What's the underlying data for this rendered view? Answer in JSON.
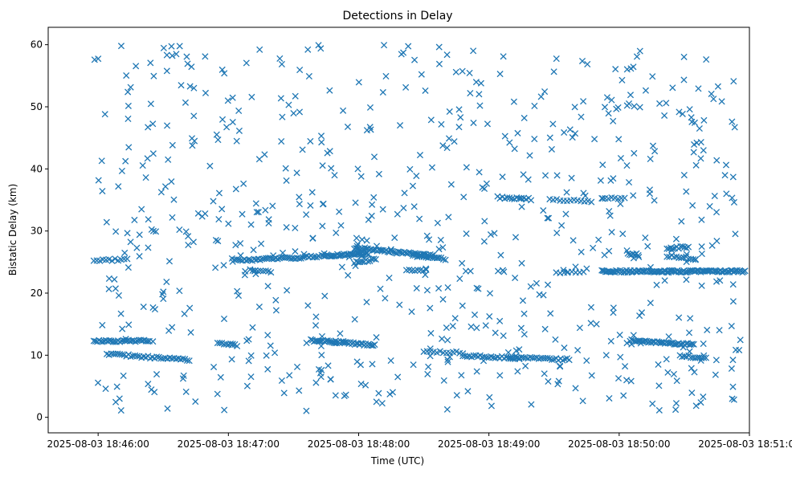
{
  "chart_data": {
    "type": "scatter",
    "title": "Detections in Delay",
    "xlabel": "Time (UTC)",
    "ylabel": "Bistatic Delay (km)",
    "marker": "x",
    "marker_color": "#1f77b4",
    "grid": false,
    "x_is_time": true,
    "xlim_seconds_from_1846": [
      -23,
      300
    ],
    "ylim": [
      -2.5,
      62.8
    ],
    "xticks": [
      {
        "value": 0,
        "label": "2025-08-03 18:46:00"
      },
      {
        "value": 60,
        "label": "2025-08-03 18:47:00"
      },
      {
        "value": 120,
        "label": "2025-08-03 18:48:00"
      },
      {
        "value": 180,
        "label": "2025-08-03 18:49:00"
      },
      {
        "value": 240,
        "label": "2025-08-03 18:50:00"
      },
      {
        "value": 300,
        "label": "2025-08-03 18:51:00"
      }
    ],
    "yticks": [
      0,
      10,
      20,
      30,
      40,
      50,
      60
    ],
    "tracks": [
      {
        "t0": -2,
        "t1": 24,
        "d0": 12.3,
        "d1": 12.3,
        "step": 0.8
      },
      {
        "t0": 4,
        "t1": 42,
        "d0": 10.2,
        "d1": 9.2,
        "step": 1.0
      },
      {
        "t0": -2,
        "t1": 14,
        "d0": 25.2,
        "d1": 25.5,
        "step": 1.4
      },
      {
        "t0": 55,
        "t1": 64,
        "d0": 12.0,
        "d1": 11.6,
        "step": 1.0
      },
      {
        "t0": 62,
        "t1": 102,
        "d0": 25.2,
        "d1": 25.9,
        "step": 0.9
      },
      {
        "t0": 70,
        "t1": 80,
        "d0": 23.8,
        "d1": 23.4,
        "step": 1.2
      },
      {
        "t0": 98,
        "t1": 128,
        "d0": 12.4,
        "d1": 11.6,
        "step": 0.7
      },
      {
        "t0": 103,
        "t1": 125,
        "d0": 26.0,
        "d1": 26.3,
        "step": 0.6
      },
      {
        "t0": 118,
        "t1": 155,
        "d0": 27.2,
        "d1": 26.0,
        "step": 0.7
      },
      {
        "t0": 118,
        "t1": 128,
        "d0": 25.0,
        "d1": 25.4,
        "step": 0.9
      },
      {
        "t0": 145,
        "t1": 160,
        "d0": 26.0,
        "d1": 25.5,
        "step": 1.0
      },
      {
        "t0": 142,
        "t1": 152,
        "d0": 23.8,
        "d1": 23.7,
        "step": 1.3
      },
      {
        "t0": 150,
        "t1": 168,
        "d0": 10.6,
        "d1": 10.4,
        "step": 1.5
      },
      {
        "t0": 168,
        "t1": 195,
        "d0": 9.9,
        "d1": 9.5,
        "step": 1.0
      },
      {
        "t0": 190,
        "t1": 217,
        "d0": 9.6,
        "d1": 9.3,
        "step": 1.0
      },
      {
        "t0": 184,
        "t1": 200,
        "d0": 35.4,
        "d1": 35.1,
        "step": 1.1
      },
      {
        "t0": 208,
        "t1": 228,
        "d0": 35.0,
        "d1": 34.8,
        "step": 1.6
      },
      {
        "t0": 232,
        "t1": 243,
        "d0": 35.3,
        "d1": 35.2,
        "step": 1.5
      },
      {
        "t0": 211,
        "t1": 224,
        "d0": 23.3,
        "d1": 23.4,
        "step": 1.8
      },
      {
        "t0": 232,
        "t1": 298,
        "d0": 23.5,
        "d1": 23.5,
        "step": 0.6
      },
      {
        "t0": 245,
        "t1": 275,
        "d0": 12.4,
        "d1": 11.7,
        "step": 0.7
      },
      {
        "t0": 268,
        "t1": 280,
        "d0": 9.9,
        "d1": 9.5,
        "step": 1.0
      },
      {
        "t0": 244,
        "t1": 249,
        "d0": 26.3,
        "d1": 26.2,
        "step": 0.8
      },
      {
        "t0": 262,
        "t1": 272,
        "d0": 27.2,
        "d1": 27.4,
        "step": 0.9
      },
      {
        "t0": 262,
        "t1": 276,
        "d0": 26.0,
        "d1": 25.5,
        "step": 1.1
      }
    ],
    "clutter_count": 700,
    "clutter_seed": 20250803
  }
}
